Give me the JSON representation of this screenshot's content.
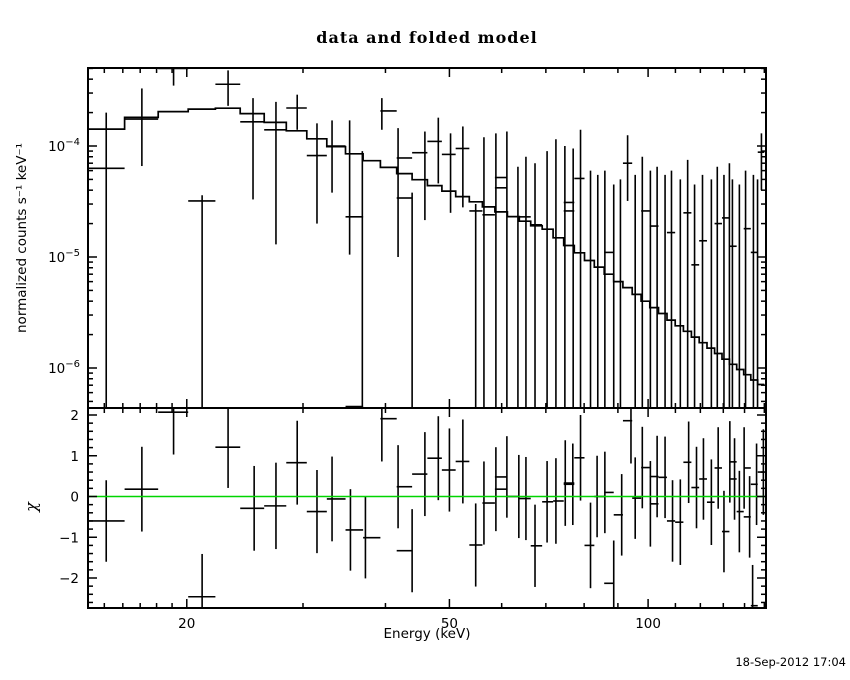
{
  "title": "data and folded model",
  "timestamp": "18-Sep-2012 17:04",
  "colors": {
    "foreground": "#000000",
    "background": "#ffffff",
    "zero_line": "#00d500"
  },
  "axes": {
    "x_label": "Energy (keV)",
    "y_label": "normalized counts s⁻¹ keV⁻¹",
    "chi_label": "χ",
    "x_log": true,
    "x_range": [
      14.17,
      150.8
    ],
    "x_major_ticks": [
      20,
      50,
      100
    ],
    "x_major_labels": [
      "20",
      "50",
      "100"
    ],
    "x_minor_ticks": [
      15,
      16,
      17,
      18,
      19,
      30,
      40,
      60,
      70,
      80,
      90,
      110,
      120,
      130,
      140,
      150
    ],
    "y_top_log": true,
    "y_top_range": [
      4.36e-07,
      0.000505
    ],
    "y_top_major_exponents": [
      -4,
      -5,
      -6
    ],
    "chi_range": [
      -2.74,
      2.17
    ],
    "chi_major_ticks": [
      2,
      1,
      0,
      -1,
      -2
    ],
    "chi_major_labels": [
      "2",
      "1",
      "0",
      "−1",
      "−2"
    ],
    "chi_minor_step": 0.2
  },
  "chart_data": {
    "type": "line",
    "description": "X-ray spectrum: data points with error bars, folded model histogram (top, log-log), chi residuals with green zero line (bottom)",
    "model_bins": {
      "edges": [
        14.2,
        16.1,
        18.1,
        20.1,
        22.1,
        24.1,
        26.2,
        28.3,
        30.4,
        32.6,
        34.8,
        37.0,
        39.3,
        41.6,
        43.9,
        46.3,
        48.7,
        51.1,
        53.6,
        56.1,
        58.6,
        61.2,
        63.8,
        66.4,
        69.1,
        71.8,
        74.5,
        77.3,
        80.1,
        82.9,
        85.8,
        88.7,
        91.6,
        94.6,
        97.6,
        100.6,
        103.7,
        106.8,
        109.9,
        113.1,
        116.3,
        119.5,
        122.8,
        126.1,
        129.4,
        132.8,
        136.2,
        139.6,
        143.1,
        146.6,
        150.0
      ],
      "values": [
        0.000142,
        0.000181,
        0.000204,
        0.000215,
        0.000219,
        0.000196,
        0.000163,
        0.000137,
        0.000116,
        9.86e-05,
        8.5e-05,
        7.37e-05,
        6.42e-05,
        5.64e-05,
        4.97e-05,
        4.4e-05,
        3.92e-05,
        3.5e-05,
        3.14e-05,
        2.83e-05,
        2.55e-05,
        2.31e-05,
        2.1e-05,
        1.91e-05,
        1.78e-05,
        1.49e-05,
        1.27e-05,
        1.09e-05,
        9.3e-06,
        8.1e-06,
        7e-06,
        6e-06,
        5.3e-06,
        4.6e-06,
        4e-06,
        3.5e-06,
        3.1e-06,
        2.7e-06,
        2.4e-06,
        2.14e-06,
        1.9e-06,
        1.69e-06,
        1.51e-06,
        1.35e-06,
        1.2e-06,
        1.08e-06,
        9.7e-07,
        8.7e-07,
        7.8e-07,
        7.1e-07
      ]
    },
    "points_note": "each point = [energy_keV, value, err_top_value, err_bottom_value]; null value = no center bar visible; null err_top = clipped at panel top; null err_bottom = extends below panel bottom",
    "points": [
      [
        15.1,
        6.3e-05,
        0.0002,
        null
      ],
      [
        17.1,
        0.000175,
        0.00033,
        6.6e-05
      ],
      [
        19.1,
        0.0005,
        null,
        0.00035
      ],
      [
        21.1,
        3.2e-05,
        3.6e-05,
        null
      ],
      [
        23.1,
        0.00036,
        0.00048,
        0.00023
      ],
      [
        25.2,
        0.000165,
        0.00027,
        3.3e-05
      ],
      [
        27.3,
        0.00014,
        0.00025,
        1.3e-05
      ],
      [
        29.4,
        0.00022,
        0.00029,
        0.00014
      ],
      [
        31.5,
        8.2e-05,
        0.00016,
        2e-05
      ],
      [
        33.2,
        0.0001,
        0.00017,
        3.8e-05
      ],
      [
        35.3,
        2.3e-05,
        0.00017,
        1.05e-05
      ],
      [
        36.9,
        4.5e-07,
        9e-05,
        null
      ],
      [
        39.5,
        0.000207,
        0.00027,
        0.00014
      ],
      [
        41.8,
        7.8e-05,
        0.000145,
        1e-05
      ],
      [
        43.9,
        3.4e-05,
        3.8e-05,
        null
      ],
      [
        45.9,
        8.7e-05,
        0.000135,
        2.15e-05
      ],
      [
        48.1,
        0.00011,
        0.00018,
        4.6e-05
      ],
      [
        50.2,
        8.4e-05,
        0.00013,
        2.5e-05
      ],
      [
        52.4,
        9.5e-05,
        0.00015,
        2.8e-05
      ],
      [
        54.8,
        2.6e-05,
        3e-05,
        null
      ],
      [
        56.4,
        2.4e-05,
        0.00012,
        null
      ],
      [
        58.8,
        4.2e-05,
        0.00013,
        null
      ],
      [
        61.1,
        5.2e-05,
        0.000135,
        null
      ],
      [
        63.5,
        null,
        6.5e-05,
        null
      ],
      [
        65.3,
        2.3e-05,
        8e-05,
        null
      ],
      [
        67.4,
        1.95e-05,
        7e-05,
        null
      ],
      [
        70.3,
        null,
        9e-05,
        null
      ],
      [
        72.5,
        null,
        0.000115,
        null
      ],
      [
        74.8,
        3.1e-05,
        0.0001,
        null
      ],
      [
        77.0,
        2.6e-05,
        9.5e-05,
        null
      ],
      [
        79.0,
        5.1e-05,
        0.00014,
        null
      ],
      [
        81.8,
        null,
        6e-05,
        null
      ],
      [
        83.9,
        8.1e-06,
        5.5e-05,
        null
      ],
      [
        86.0,
        1.1e-05,
        6e-05,
        null
      ],
      [
        88.7,
        null,
        4.5e-05,
        null
      ],
      [
        90.8,
        null,
        5e-05,
        null
      ],
      [
        93.1,
        7e-05,
        0.000125,
        3.2e-05
      ],
      [
        95.6,
        null,
        5.5e-05,
        null
      ],
      [
        98.0,
        2.6e-05,
        8e-05,
        null
      ],
      [
        100.8,
        null,
        6e-05,
        null
      ],
      [
        103.2,
        1.9e-05,
        6.5e-05,
        null
      ],
      [
        106.1,
        null,
        5.5e-05,
        null
      ],
      [
        108.5,
        1.66e-05,
        6e-05,
        null
      ],
      [
        111.9,
        null,
        5e-05,
        null
      ],
      [
        114.8,
        2.5e-05,
        7.5e-05,
        null
      ],
      [
        117.6,
        8.5e-06,
        4.5e-05,
        null
      ],
      [
        120.9,
        1.4e-05,
        5.5e-05,
        null
      ],
      [
        124.7,
        null,
        5e-05,
        null
      ],
      [
        127.3,
        2e-05,
        6.5e-05,
        null
      ],
      [
        130.3,
        null,
        5.5e-05,
        null
      ],
      [
        132.8,
        2.25e-05,
        7e-05,
        null
      ],
      [
        134.2,
        1.25e-05,
        5e-05,
        null
      ],
      [
        137.5,
        null,
        4.5e-05,
        null
      ],
      [
        140.5,
        1.8e-05,
        6e-05,
        null
      ],
      [
        144.4,
        1.1e-05,
        5.5e-05,
        null
      ],
      [
        146.5,
        null,
        5e-05,
        null
      ],
      [
        148.5,
        8.8e-05,
        0.00013,
        4e-05
      ]
    ],
    "residuals_note": "each = [energy_keV, chi, sigma_error]",
    "residuals": [
      [
        15.1,
        -0.6,
        1.0
      ],
      [
        17.1,
        0.18,
        1.04
      ],
      [
        19.1,
        2.07,
        1.04
      ],
      [
        21.1,
        -2.46,
        1.05
      ],
      [
        23.1,
        1.21,
        1.0
      ],
      [
        25.3,
        -0.29,
        1.04
      ],
      [
        27.3,
        -0.23,
        1.06
      ],
      [
        29.4,
        0.83,
        1.03
      ],
      [
        31.5,
        -0.37,
        1.02
      ],
      [
        33.2,
        -0.06,
        1.04
      ],
      [
        35.4,
        -0.82,
        1.0
      ],
      [
        37.3,
        -1.01,
        1.0
      ],
      [
        39.5,
        1.91,
        1.05
      ],
      [
        41.8,
        0.24,
        1.02
      ],
      [
        43.9,
        -1.33,
        1.02
      ],
      [
        45.9,
        0.55,
        1.03
      ],
      [
        48.1,
        0.94,
        1.03
      ],
      [
        50.0,
        0.65,
        1.02
      ],
      [
        52.4,
        0.86,
        1.03
      ],
      [
        54.8,
        -1.19,
        1.02
      ],
      [
        56.4,
        -0.16,
        1.02
      ],
      [
        58.8,
        0.18,
        1.03
      ],
      [
        61.1,
        0.48,
        1.0
      ],
      [
        63.7,
        0.0,
        1.02
      ],
      [
        65.3,
        -0.05,
        1.02
      ],
      [
        67.4,
        -1.21,
        1.01
      ],
      [
        70.3,
        -0.13,
        1.0
      ],
      [
        72.5,
        -0.11,
        1.05
      ],
      [
        74.9,
        0.33,
        1.05
      ],
      [
        76.9,
        0.3,
        1.0
      ],
      [
        79.0,
        0.95,
        1.05
      ],
      [
        81.8,
        -1.2,
        1.05
      ],
      [
        83.7,
        0.0,
        1.0
      ],
      [
        86.0,
        0.1,
        1.0
      ],
      [
        88.7,
        -2.13,
        1.05
      ],
      [
        91.2,
        -0.45,
        1.0
      ],
      [
        94.2,
        1.86,
        1.05
      ],
      [
        95.6,
        -0.04,
        1.0
      ],
      [
        98.0,
        0.71,
        1.0
      ],
      [
        100.8,
        -0.18,
        1.05
      ],
      [
        103.2,
        0.49,
        1.0
      ],
      [
        106.1,
        0.47,
        1.0
      ],
      [
        108.9,
        -0.6,
        1.0
      ],
      [
        111.9,
        -0.63,
        1.05
      ],
      [
        115.2,
        0.84,
        1.0
      ],
      [
        118.4,
        0.22,
        1.0
      ],
      [
        121.3,
        0.43,
        1.0
      ],
      [
        124.7,
        -0.14,
        1.05
      ],
      [
        127.7,
        0.7,
        1.0
      ],
      [
        130.3,
        -0.86,
        1.0
      ],
      [
        133.0,
        0.85,
        1.0
      ],
      [
        135.2,
        0.43,
        1.0
      ],
      [
        137.5,
        -0.37,
        1.0
      ],
      [
        139.8,
        0.7,
        1.0
      ],
      [
        142.5,
        -0.5,
        1.0
      ],
      [
        144.0,
        -2.68,
        1.0
      ],
      [
        146.0,
        0.3,
        1.0
      ],
      [
        149.5,
        0.6,
        1.05
      ]
    ],
    "zero_line": 0
  }
}
